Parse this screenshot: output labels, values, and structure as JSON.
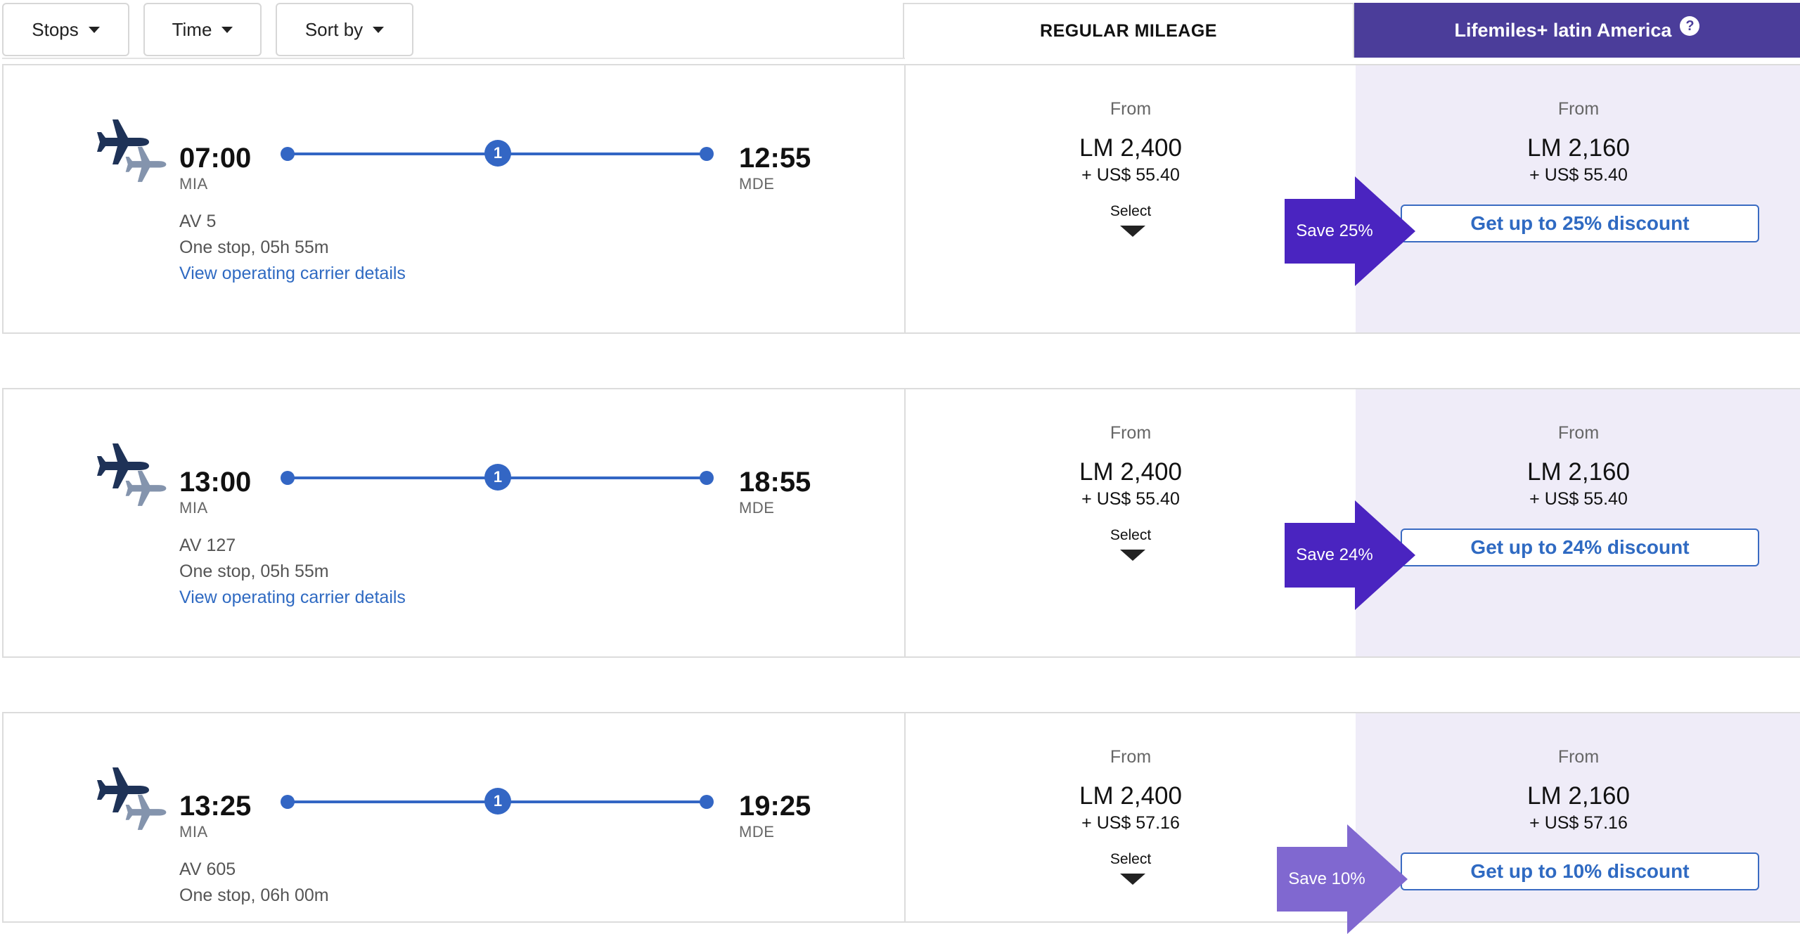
{
  "filters": {
    "stops_label": "Stops",
    "time_label": "Time",
    "sort_label": "Sort by"
  },
  "columns": {
    "regular": "REGULAR MILEAGE",
    "plus": "Lifemiles+ latin America",
    "help": "?"
  },
  "colors": {
    "accent": "#4b3d9a",
    "link": "#2f6ac2",
    "badge_dark": "#4a24c0",
    "badge_light": "#8068d0",
    "plus_bg": "#efecf8"
  },
  "flights": [
    {
      "dep_time": "07:00",
      "dep_code": "MIA",
      "arr_time": "12:55",
      "arr_code": "MDE",
      "stops": "1",
      "flight_no": "AV 5",
      "duration": "One stop, 05h 55m",
      "carrier_link": "View operating carrier details",
      "regular": {
        "from": "From",
        "miles": "LM 2,400",
        "tax": "+ US$ 55.40",
        "select": "Select"
      },
      "plus": {
        "from": "From",
        "miles": "LM 2,160",
        "tax": "+ US$ 55.40",
        "discount": "Get up to 25% discount"
      },
      "save": "Save 25%",
      "badge_color": "#4a24c0"
    },
    {
      "dep_time": "13:00",
      "dep_code": "MIA",
      "arr_time": "18:55",
      "arr_code": "MDE",
      "stops": "1",
      "flight_no": "AV 127",
      "duration": "One stop, 05h 55m",
      "carrier_link": "View operating carrier details",
      "regular": {
        "from": "From",
        "miles": "LM 2,400",
        "tax": "+ US$ 55.40",
        "select": "Select"
      },
      "plus": {
        "from": "From",
        "miles": "LM 2,160",
        "tax": "+ US$ 55.40",
        "discount": "Get up to 24% discount"
      },
      "save": "Save 24%",
      "badge_color": "#4a24c0"
    },
    {
      "dep_time": "13:25",
      "dep_code": "MIA",
      "arr_time": "19:25",
      "arr_code": "MDE",
      "stops": "1",
      "flight_no": "AV 605",
      "duration": "One stop, 06h 00m",
      "carrier_link": "",
      "regular": {
        "from": "From",
        "miles": "LM 2,400",
        "tax": "+ US$ 57.16",
        "select": "Select"
      },
      "plus": {
        "from": "From",
        "miles": "LM 2,160",
        "tax": "+ US$ 57.16",
        "discount": "Get up to 10% discount"
      },
      "save": "Save 10%",
      "badge_color": "#8068d0"
    }
  ]
}
